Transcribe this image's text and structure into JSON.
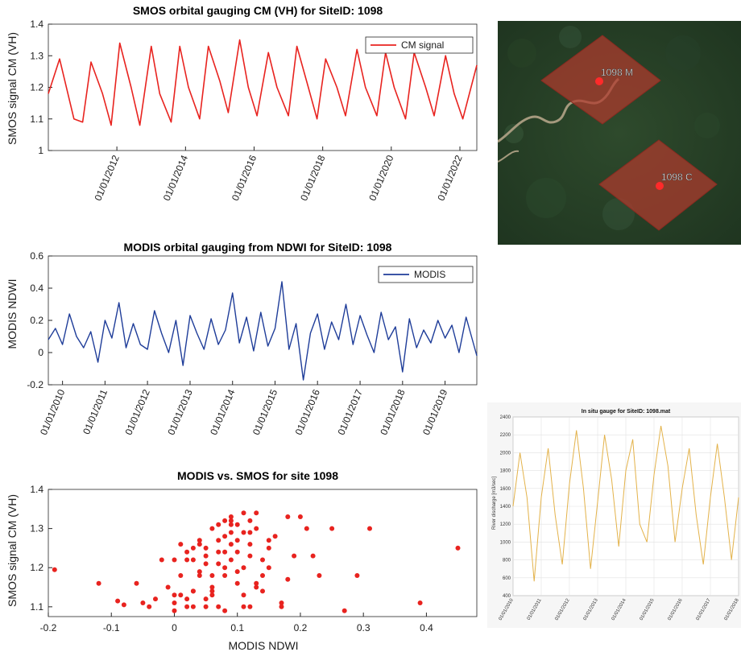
{
  "chart_data": [
    {
      "type": "line",
      "title": "SMOS orbital gauging  CM (VH) for SiteID: 1098",
      "xlabel": "",
      "ylabel": "SMOS signal CM (VH)",
      "x_tick_labels": [
        "01/01/2012",
        "01/01/2014",
        "01/01/2016",
        "01/01/2018",
        "01/01/2020",
        "01/01/2022"
      ],
      "y_tick_labels": [
        "1",
        "1.1",
        "1.2",
        "1.3",
        "1.4"
      ],
      "xlim": [
        "2010-01-01",
        "2022-06-30"
      ],
      "ylim": [
        1.0,
        1.4
      ],
      "legend_position": "top-right",
      "grid": false,
      "color": "#e8231f",
      "series": [
        {
          "name": "CM signal",
          "x": [
            "2010-01-01",
            "2010-05-01",
            "2010-10-01",
            "2011-01-01",
            "2011-04-01",
            "2011-08-01",
            "2011-11-01",
            "2012-02-01",
            "2012-06-01",
            "2012-09-01",
            "2013-01-01",
            "2013-04-01",
            "2013-08-01",
            "2013-11-01",
            "2014-02-01",
            "2014-06-01",
            "2014-09-01",
            "2015-01-01",
            "2015-04-01",
            "2015-08-01",
            "2015-11-01",
            "2016-02-01",
            "2016-06-01",
            "2016-09-01",
            "2017-01-01",
            "2017-04-01",
            "2017-08-01",
            "2017-11-01",
            "2018-02-01",
            "2018-06-01",
            "2018-09-01",
            "2019-01-01",
            "2019-04-01",
            "2019-08-01",
            "2019-11-01",
            "2020-02-01",
            "2020-06-01",
            "2020-09-01",
            "2021-01-01",
            "2021-04-01",
            "2021-08-01",
            "2021-11-01",
            "2022-02-01",
            "2022-06-30"
          ],
          "y": [
            1.18,
            1.29,
            1.1,
            1.09,
            1.28,
            1.18,
            1.08,
            1.34,
            1.2,
            1.08,
            1.33,
            1.18,
            1.09,
            1.33,
            1.2,
            1.1,
            1.33,
            1.22,
            1.12,
            1.35,
            1.2,
            1.11,
            1.31,
            1.2,
            1.11,
            1.33,
            1.2,
            1.1,
            1.29,
            1.2,
            1.11,
            1.32,
            1.2,
            1.11,
            1.31,
            1.2,
            1.1,
            1.31,
            1.2,
            1.11,
            1.3,
            1.18,
            1.1,
            1.27
          ]
        }
      ]
    },
    {
      "type": "line",
      "title": "MODIS orbital gauging  from NDWI for SiteID: 1098",
      "xlabel": "",
      "ylabel": "MODIS NDWI",
      "x_tick_labels": [
        "01/01/2010",
        "01/01/2011",
        "01/01/2012",
        "01/01/2013",
        "01/01/2014",
        "01/01/2015",
        "01/01/2016",
        "01/01/2017",
        "01/01/2018",
        "01/01/2019"
      ],
      "y_tick_labels": [
        "-0.2",
        "0",
        "0.2",
        "0.4",
        "0.6"
      ],
      "xlim": [
        "2009-09-01",
        "2019-10-01"
      ],
      "ylim": [
        -0.2,
        0.6
      ],
      "legend_position": "top-right",
      "grid": false,
      "color": "#1f3d99",
      "series": [
        {
          "name": "MODIS",
          "x": [
            "2009-09-01",
            "2009-11-01",
            "2010-01-01",
            "2010-03-01",
            "2010-05-01",
            "2010-07-01",
            "2010-09-01",
            "2010-11-01",
            "2011-01-01",
            "2011-03-01",
            "2011-05-01",
            "2011-07-01",
            "2011-09-01",
            "2011-11-01",
            "2012-01-01",
            "2012-03-01",
            "2012-05-01",
            "2012-07-01",
            "2012-09-01",
            "2012-11-01",
            "2013-01-01",
            "2013-03-01",
            "2013-05-01",
            "2013-07-01",
            "2013-09-01",
            "2013-11-01",
            "2014-01-01",
            "2014-03-01",
            "2014-05-01",
            "2014-07-01",
            "2014-09-01",
            "2014-11-01",
            "2015-01-01",
            "2015-03-01",
            "2015-05-01",
            "2015-07-01",
            "2015-09-01",
            "2015-11-01",
            "2016-01-01",
            "2016-03-01",
            "2016-05-01",
            "2016-07-01",
            "2016-09-01",
            "2016-11-01",
            "2017-01-01",
            "2017-03-01",
            "2017-05-01",
            "2017-07-01",
            "2017-09-01",
            "2017-11-01",
            "2018-01-01",
            "2018-03-01",
            "2018-05-01",
            "2018-07-01",
            "2018-09-01",
            "2018-11-01",
            "2019-01-01",
            "2019-03-01",
            "2019-05-01",
            "2019-07-01",
            "2019-10-01"
          ],
          "y": [
            0.08,
            0.15,
            0.05,
            0.24,
            0.1,
            0.03,
            0.13,
            -0.06,
            0.2,
            0.09,
            0.31,
            0.03,
            0.18,
            0.05,
            0.02,
            0.26,
            0.12,
            0.0,
            0.2,
            -0.08,
            0.23,
            0.12,
            0.02,
            0.21,
            0.05,
            0.14,
            0.37,
            0.06,
            0.22,
            0.01,
            0.25,
            0.04,
            0.15,
            0.44,
            0.02,
            0.18,
            -0.17,
            0.12,
            0.24,
            0.02,
            0.19,
            0.08,
            0.3,
            0.05,
            0.23,
            0.11,
            0.0,
            0.25,
            0.08,
            0.16,
            -0.12,
            0.21,
            0.03,
            0.14,
            0.06,
            0.2,
            0.09,
            0.17,
            0.0,
            0.22,
            -0.02
          ]
        }
      ]
    },
    {
      "type": "scatter",
      "title": "MODIS vs. SMOS for site  1098",
      "xlabel": "MODIS NDWI",
      "ylabel": "SMOS signal CM (VH)",
      "x_tick_labels": [
        "-0.2",
        "-0.1",
        "0",
        "0.1",
        "0.2",
        "0.3",
        "0.4"
      ],
      "y_tick_labels": [
        "1.1",
        "1.2",
        "1.3",
        "1.4"
      ],
      "xlim": [
        -0.2,
        0.48
      ],
      "ylim": [
        1.075,
        1.4
      ],
      "grid": false,
      "color": "#e8231f",
      "series": [
        {
          "x": [
            -0.19,
            -0.12,
            -0.09,
            -0.08,
            -0.06,
            -0.04,
            -0.03,
            -0.01,
            0.0,
            0.01,
            0.01,
            0.02,
            0.02,
            0.03,
            0.03,
            0.04,
            0.04,
            0.05,
            0.05,
            0.06,
            0.06,
            0.06,
            0.07,
            0.07,
            0.08,
            0.08,
            0.08,
            0.09,
            0.09,
            0.09,
            0.1,
            0.1,
            0.1,
            0.11,
            0.11,
            0.12,
            0.12,
            0.13,
            0.13,
            0.14,
            0.14,
            0.15,
            0.16,
            0.17,
            0.18,
            0.2,
            0.22,
            0.25,
            0.27,
            0.29,
            0.31,
            0.39,
            0.45,
            -0.05,
            0.0,
            0.02,
            0.04,
            0.05,
            0.07,
            0.08,
            0.09,
            0.1,
            0.11,
            0.12,
            0.03,
            0.06,
            0.08,
            0.12,
            0.14,
            0.15,
            0.17,
            0.19,
            0.21,
            0.23,
            -0.02,
            0.0,
            0.03,
            0.05,
            0.07,
            0.09,
            0.11,
            0.13,
            0.15,
            0.18,
            0.0,
            0.02,
            0.04,
            0.06,
            0.08,
            0.1,
            0.12,
            0.01,
            0.03,
            0.05,
            0.07,
            0.09,
            0.11,
            0.13
          ],
          "y": [
            1.195,
            1.16,
            1.115,
            1.105,
            1.16,
            1.1,
            1.12,
            1.15,
            1.22,
            1.26,
            1.18,
            1.24,
            1.12,
            1.14,
            1.22,
            1.27,
            1.19,
            1.1,
            1.25,
            1.3,
            1.18,
            1.14,
            1.27,
            1.21,
            1.32,
            1.28,
            1.24,
            1.33,
            1.29,
            1.22,
            1.31,
            1.27,
            1.16,
            1.34,
            1.29,
            1.32,
            1.23,
            1.34,
            1.3,
            1.22,
            1.14,
            1.25,
            1.28,
            1.1,
            1.17,
            1.33,
            1.23,
            1.3,
            1.09,
            1.18,
            1.3,
            1.11,
            1.25,
            1.11,
            1.11,
            1.22,
            1.18,
            1.21,
            1.24,
            1.18,
            1.32,
            1.19,
            1.13,
            1.29,
            1.1,
            1.15,
            1.09,
            1.26,
            1.18,
            1.27,
            1.11,
            1.23,
            1.3,
            1.18,
            1.22,
            1.13,
            1.14,
            1.12,
            1.31,
            1.26,
            1.1,
            1.16,
            1.2,
            1.33,
            1.09,
            1.1,
            1.26,
            1.13,
            1.2,
            1.24,
            1.1,
            1.13,
            1.25,
            1.23,
            1.1,
            1.31,
            1.2,
            1.15
          ]
        }
      ]
    },
    {
      "type": "line",
      "title": "In situ gauge for SiteID: 1098.mat",
      "xlabel": "",
      "ylabel": "River discharge [m3/sec]",
      "x_tick_labels": [
        "01/01/2010",
        "01/01/2011",
        "01/01/2012",
        "01/01/2013",
        "01/01/2014",
        "01/01/2015",
        "01/01/2016",
        "01/01/2017",
        "01/01/2018"
      ],
      "y_tick_labels": [
        "400",
        "600",
        "800",
        "1000",
        "1200",
        "1400",
        "1600",
        "1800",
        "2000",
        "2200",
        "2400"
      ],
      "xlim": [
        "2010-01-01",
        "2018-01-01"
      ],
      "ylim": [
        400,
        2400
      ],
      "grid": true,
      "color": "#e3b24a",
      "series": [
        {
          "x": [
            "2010-01-01",
            "2010-04-01",
            "2010-07-01",
            "2010-10-01",
            "2011-01-01",
            "2011-04-01",
            "2011-07-01",
            "2011-10-01",
            "2012-01-01",
            "2012-04-01",
            "2012-07-01",
            "2012-10-01",
            "2013-01-01",
            "2013-04-01",
            "2013-07-01",
            "2013-10-01",
            "2014-01-01",
            "2014-04-01",
            "2014-07-01",
            "2014-10-01",
            "2015-01-01",
            "2015-04-01",
            "2015-07-01",
            "2015-10-01",
            "2016-01-01",
            "2016-04-01",
            "2016-07-01",
            "2016-10-01",
            "2017-01-01",
            "2017-04-01",
            "2017-07-01",
            "2017-10-01",
            "2018-01-01"
          ],
          "y": [
            1400,
            2000,
            1500,
            560,
            1500,
            2050,
            1300,
            750,
            1650,
            2250,
            1600,
            700,
            1450,
            2200,
            1700,
            950,
            1800,
            2150,
            1200,
            1000,
            1750,
            2300,
            1850,
            1000,
            1600,
            2050,
            1300,
            750,
            1500,
            2100,
            1500,
            800,
            1500
          ]
        }
      ]
    }
  ],
  "map": {
    "labels": [
      "1098  M",
      "1098  C"
    ]
  }
}
